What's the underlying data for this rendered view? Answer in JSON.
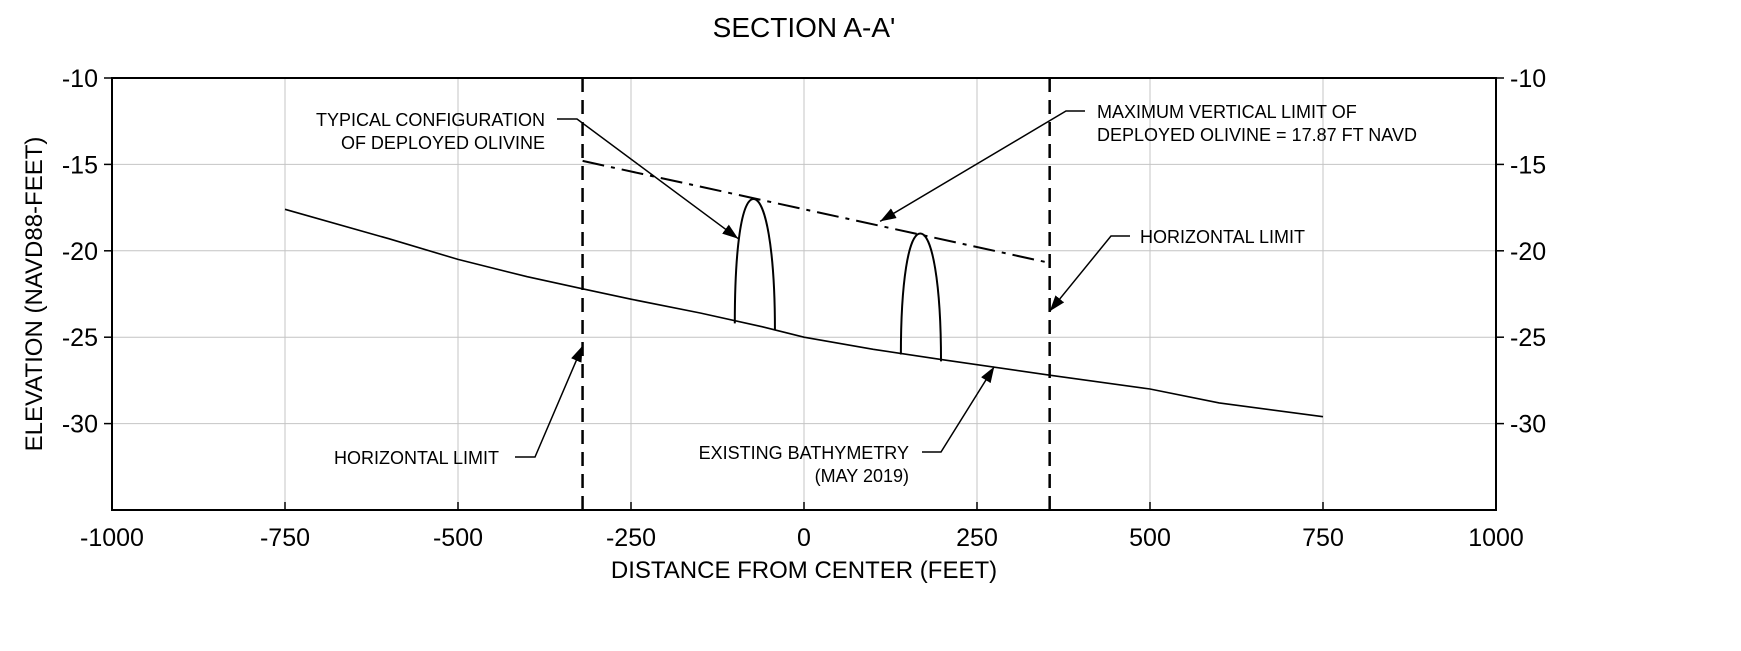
{
  "chart_data": {
    "type": "line",
    "title": "SECTION A-A'",
    "xlabel": "DISTANCE FROM CENTER (FEET)",
    "ylabel": "ELEVATION (NAVD88-FEET)",
    "xlim": [
      -1000,
      1000
    ],
    "ylim": [
      -35,
      -10
    ],
    "x_ticks": [
      -1000,
      -750,
      -500,
      -250,
      0,
      250,
      500,
      750,
      1000
    ],
    "x_tick_labels": [
      "-1000",
      "-750",
      "-500",
      "-250",
      "0",
      "250",
      "500",
      "750",
      "1000"
    ],
    "y_ticks": [
      -10,
      -15,
      -20,
      -25,
      -30
    ],
    "y_tick_labels": [
      "-10",
      "-15",
      "-20",
      "-25",
      "-30"
    ],
    "grid": true,
    "right_axis_labels": true,
    "series": [
      {
        "style": "solid",
        "points": [
          [
            -750,
            -17.6
          ],
          [
            -600,
            -19.3
          ],
          [
            -500,
            -20.5
          ],
          [
            -400,
            -21.5
          ],
          [
            -320,
            -22.2
          ],
          [
            -250,
            -22.8
          ],
          [
            -150,
            -23.6
          ],
          [
            -60,
            -24.4
          ],
          [
            0,
            -25.0
          ],
          [
            100,
            -25.7
          ],
          [
            200,
            -26.3
          ],
          [
            355,
            -27.2
          ],
          [
            500,
            -28.0
          ],
          [
            600,
            -28.8
          ],
          [
            750,
            -29.6
          ]
        ]
      },
      {
        "style": "dash-dot",
        "points": [
          [
            -320,
            -14.8
          ],
          [
            355,
            -20.7
          ]
        ]
      }
    ],
    "vertical_limits": [
      -320,
      355
    ],
    "mounds": [
      {
        "left_x": -100,
        "right_x": -42,
        "peak_x": -73,
        "peak_y": -17.0,
        "base_left_y": -24.2,
        "base_right_y": -24.6
      },
      {
        "left_x": 140,
        "right_x": 198,
        "peak_x": 168,
        "peak_y": -19.0,
        "base_left_y": -26.0,
        "base_right_y": -26.4
      }
    ],
    "annotations": [
      {
        "lines": [
          "TYPICAL CONFIGURATION",
          "OF DEPLOYED OLIVINE"
        ],
        "anchor": "end",
        "arrow_to": [
          -95,
          -19.3
        ]
      },
      {
        "lines": [
          "MAXIMUM VERTICAL LIMIT OF",
          "DEPLOYED OLIVINE = 17.87 FT NAVD"
        ],
        "anchor": "start",
        "arrow_to": [
          110,
          -18.3
        ]
      },
      {
        "lines": [
          "HORIZONTAL LIMIT"
        ],
        "anchor": "start",
        "arrow_to": [
          355,
          -23.5
        ]
      },
      {
        "lines": [
          "HORIZONTAL LIMIT"
        ],
        "anchor": "end",
        "arrow_to": [
          -320,
          -25.5
        ]
      },
      {
        "lines": [
          "EXISTING BATHYMETRY",
          "(MAY 2019)"
        ],
        "anchor": "end",
        "arrow_to": [
          275,
          -26.7
        ]
      }
    ]
  }
}
